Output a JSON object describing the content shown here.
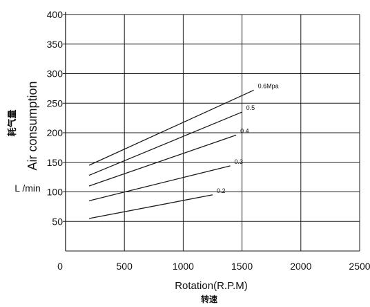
{
  "chart_data": {
    "type": "line",
    "xlabel": "Rotation(R.P.M)",
    "xlabel_cn": "转速",
    "ylabel": "Air consumption",
    "ylabel_cn": "耗气量",
    "y_unit": "L /min",
    "xlim": [
      0,
      2500
    ],
    "ylim": [
      0,
      400
    ],
    "x_ticks": [
      0,
      500,
      1000,
      1500,
      2000,
      2500
    ],
    "y_ticks": [
      50,
      100,
      150,
      200,
      250,
      300,
      350,
      400
    ],
    "grid": true,
    "series": [
      {
        "name": "0.6Mpa",
        "x": [
          200,
          1600
        ],
        "y": [
          145,
          272
        ]
      },
      {
        "name": "0.5",
        "x": [
          200,
          1500
        ],
        "y": [
          128,
          235
        ]
      },
      {
        "name": "0.4",
        "x": [
          200,
          1450
        ],
        "y": [
          110,
          196
        ]
      },
      {
        "name": "0.3",
        "x": [
          200,
          1400
        ],
        "y": [
          85,
          144
        ]
      },
      {
        "name": "0.2",
        "x": [
          200,
          1250
        ],
        "y": [
          55,
          95
        ]
      }
    ],
    "colors": {
      "line": "#1a1a1a",
      "grid": "#1a1a1a"
    }
  }
}
